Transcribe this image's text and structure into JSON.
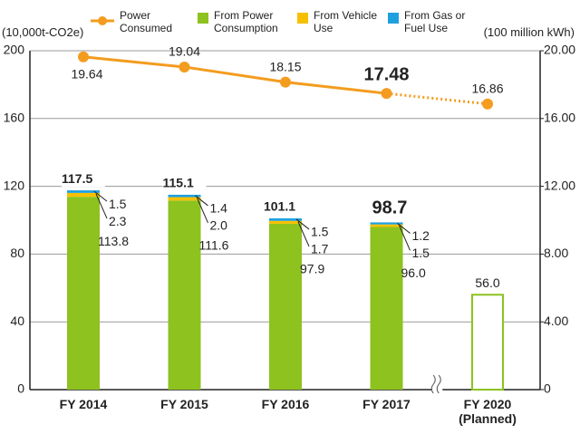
{
  "chart_data": {
    "type": "bar",
    "y_label": "(10,000t-CO2e)",
    "y2_label": "(100 million kWh)",
    "categories": [
      "FY 2014",
      "FY 2015",
      "FY 2016",
      "FY 2017",
      "FY 2020 (Planned)"
    ],
    "ylim": [
      0,
      200
    ],
    "yticks": [
      0,
      40,
      80,
      120,
      160,
      200
    ],
    "y2lim": [
      0,
      20
    ],
    "y2ticks": [
      0,
      {
        "value": 4,
        "label": "4.00"
      },
      {
        "value": 8,
        "label": "8.00"
      },
      {
        "value": 12,
        "label": "12.00"
      },
      {
        "value": 16,
        "label": "16.00"
      },
      {
        "value": 20,
        "label": "20.00"
      }
    ],
    "grid": true,
    "highlight_index": 3,
    "series": [
      {
        "name": "Power Consumed",
        "type": "line",
        "axis": "y2",
        "color": "#f39c1f",
        "values": [
          19.64,
          19.04,
          18.15,
          17.48,
          16.86
        ]
      },
      {
        "name": "From Power Consumption",
        "type": "bar",
        "color": "#8dc21f",
        "values": [
          113.8,
          111.6,
          97.9,
          96.0,
          null
        ],
        "value_labels": [
          "113.8",
          "111.6",
          "97.9",
          "96.0",
          null
        ]
      },
      {
        "name": "From Vehicle Use",
        "type": "bar",
        "color": "#f6c000",
        "values": [
          2.3,
          2.0,
          1.7,
          1.5,
          null
        ],
        "value_labels": [
          "2.3",
          "2.0",
          "1.7",
          "1.5",
          null
        ]
      },
      {
        "name": "From Gas or Fuel Use",
        "type": "bar",
        "color": "#1ea0e0",
        "values": [
          1.5,
          1.4,
          1.5,
          1.2,
          null
        ],
        "value_labels": [
          "1.5",
          "1.4",
          "1.5",
          "1.2",
          null
        ]
      }
    ],
    "totals": {
      "color": "#8dc21f",
      "values": [
        117.5,
        115.1,
        101.1,
        98.7,
        56.0
      ],
      "value_labels": [
        "117.5",
        "115.1",
        "101.1",
        "98.7",
        "56.0"
      ]
    }
  }
}
